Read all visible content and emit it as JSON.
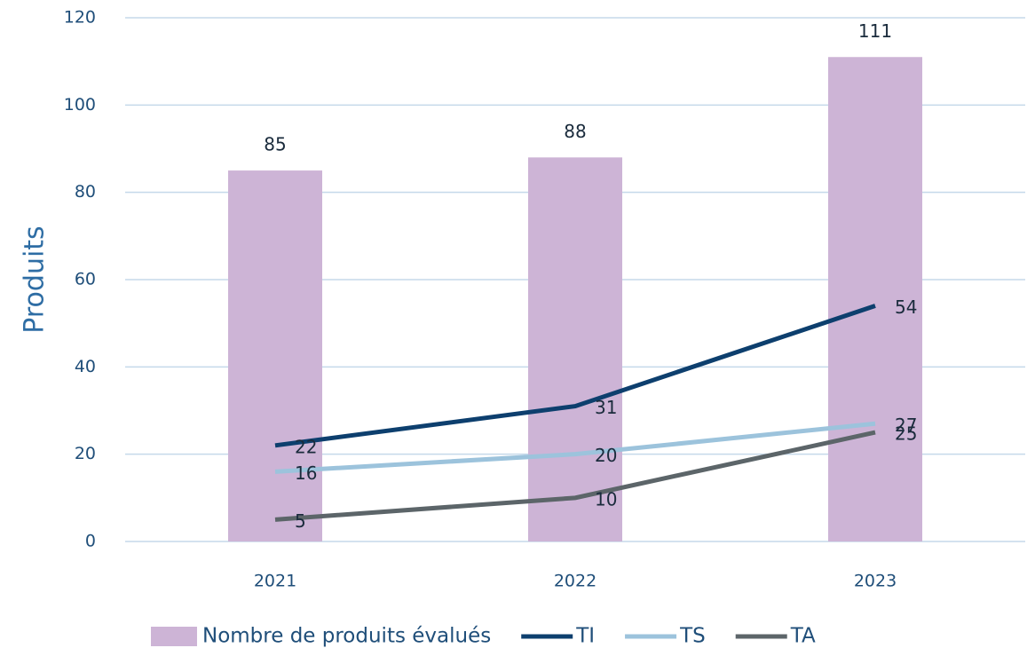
{
  "chart_data": {
    "type": "bar",
    "y_label": "Produits",
    "categories": [
      "2021",
      "2022",
      "2023"
    ],
    "series": [
      {
        "name": "Nombre de produits évalués",
        "type": "bar",
        "color": "#cdb4d6",
        "values": [
          85,
          88,
          111
        ]
      },
      {
        "name": "TI",
        "type": "line",
        "color": "#0d3f6e",
        "values": [
          22,
          31,
          54
        ]
      },
      {
        "name": "TS",
        "type": "line",
        "color": "#9cc3dc",
        "values": [
          16,
          20,
          27
        ]
      },
      {
        "name": "TA",
        "type": "line",
        "color": "#5c6569",
        "values": [
          5,
          10,
          25
        ]
      }
    ],
    "ylim": [
      0,
      120
    ],
    "yticks": [
      0,
      20,
      40,
      60,
      80,
      100,
      120
    ],
    "grid": true,
    "legend": "bottom"
  }
}
